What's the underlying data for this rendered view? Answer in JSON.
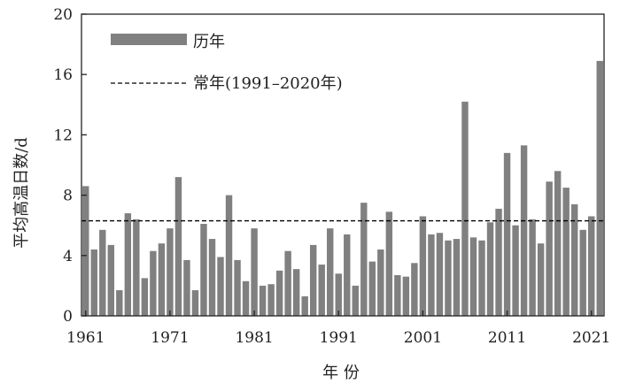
{
  "chart_data": {
    "type": "bar",
    "xlabel": "年 份",
    "ylabel": "平均高温日数/d",
    "ylim": [
      0,
      20
    ],
    "yticks": [
      0,
      4,
      8,
      12,
      16,
      20
    ],
    "x_ticks": [
      1961,
      1971,
      1981,
      1991,
      2001,
      2011,
      2021
    ],
    "grid": false,
    "legend_position": "top-left",
    "bar_color": "#808080",
    "series": [
      {
        "name": "历年",
        "x": [
          1961,
          1962,
          1963,
          1964,
          1965,
          1966,
          1967,
          1968,
          1969,
          1970,
          1971,
          1972,
          1973,
          1974,
          1975,
          1976,
          1977,
          1978,
          1979,
          1980,
          1981,
          1982,
          1983,
          1984,
          1985,
          1986,
          1987,
          1988,
          1989,
          1990,
          1991,
          1992,
          1993,
          1994,
          1995,
          1996,
          1997,
          1998,
          1999,
          2000,
          2001,
          2002,
          2003,
          2004,
          2005,
          2006,
          2007,
          2008,
          2009,
          2010,
          2011,
          2012,
          2013,
          2014,
          2015,
          2016,
          2017,
          2018,
          2019,
          2020,
          2021,
          2022
        ],
        "values": [
          8.6,
          4.4,
          5.7,
          4.7,
          1.7,
          6.8,
          6.4,
          2.5,
          4.3,
          4.8,
          5.8,
          9.2,
          3.7,
          1.7,
          6.1,
          5.1,
          3.9,
          8.0,
          3.7,
          2.3,
          5.8,
          2.0,
          2.1,
          3.0,
          4.3,
          3.1,
          1.3,
          4.7,
          3.4,
          5.8,
          2.8,
          5.4,
          2.0,
          7.5,
          3.6,
          4.4,
          6.9,
          2.7,
          2.6,
          3.5,
          6.6,
          5.4,
          5.5,
          5.0,
          5.1,
          14.2,
          5.2,
          5.0,
          6.2,
          7.1,
          10.8,
          6.0,
          11.3,
          6.4,
          4.8,
          8.9,
          9.6,
          8.5,
          7.4,
          5.7,
          6.6,
          16.9
        ]
      },
      {
        "name": "常年(1991–2020年)",
        "value": 6.3,
        "style": "dashed"
      }
    ]
  }
}
